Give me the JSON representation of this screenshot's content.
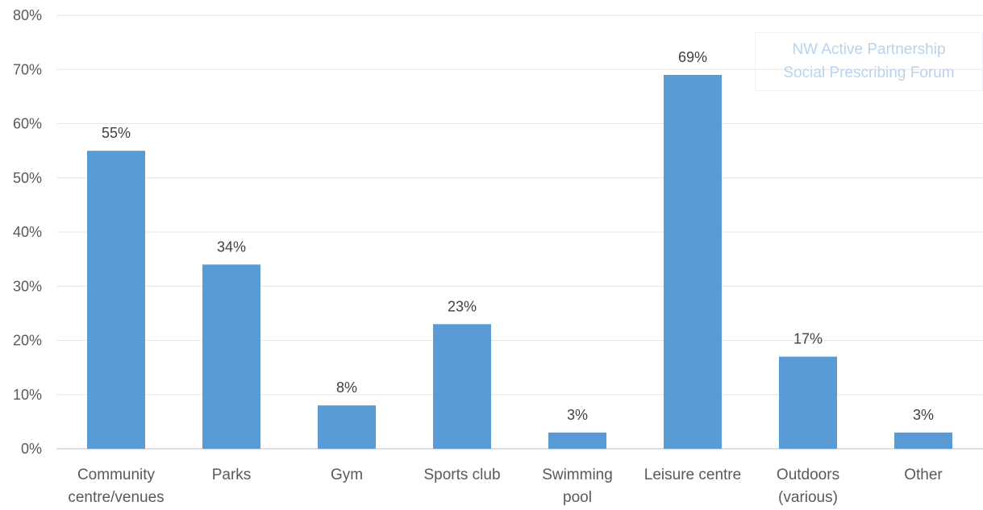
{
  "chart_data": {
    "type": "bar",
    "categories": [
      [
        "Community",
        "centre/venues"
      ],
      [
        "Parks"
      ],
      [
        "Gym"
      ],
      [
        "Sports club"
      ],
      [
        "Swimming",
        "pool"
      ],
      [
        "Leisure centre"
      ],
      [
        "Outdoors",
        "(various)"
      ],
      [
        "Other"
      ]
    ],
    "values": [
      55,
      34,
      8,
      23,
      3,
      69,
      17,
      3
    ],
    "data_labels": [
      "55%",
      "34%",
      "8%",
      "23%",
      "3%",
      "69%",
      "17%",
      "3%"
    ],
    "ylim": [
      0,
      80
    ],
    "yticks": [
      0,
      10,
      20,
      30,
      40,
      50,
      60,
      70,
      80
    ],
    "ytick_labels": [
      "0%",
      "10%",
      "20%",
      "30%",
      "40%",
      "50%",
      "60%",
      "70%",
      "80%"
    ],
    "title": "",
    "xlabel": "",
    "ylabel": "",
    "grid": true,
    "legend": "none"
  },
  "watermark": {
    "line1": "NW Active Partnership",
    "line2": "Social Prescribing Forum"
  },
  "colors": {
    "bar": "#5b9bd5",
    "grid": "#e6e6e6",
    "axis": "#bfbfbf",
    "tick_text": "#595959",
    "label_text": "#404040",
    "watermark": "#b8d3ee"
  }
}
